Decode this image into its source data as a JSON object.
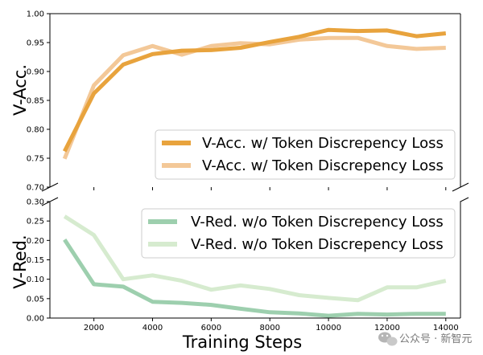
{
  "chart_data": [
    {
      "type": "line",
      "ylabel": "V-Acc.",
      "ylim": [
        0.7,
        1.0
      ],
      "yticks": [
        "0.70",
        "0.75",
        "0.80",
        "0.85",
        "0.90",
        "0.95",
        "1.00"
      ],
      "x": [
        1000,
        2000,
        3000,
        4000,
        5000,
        6000,
        7000,
        8000,
        9000,
        10000,
        11000,
        12000,
        13000,
        14000
      ],
      "legend_position": "lower-right",
      "series": [
        {
          "name": "V-Acc. w/ Token Discrepency Loss",
          "color": "#E8A33D",
          "values": [
            0.762,
            0.862,
            0.912,
            0.93,
            0.936,
            0.937,
            0.941,
            0.951,
            0.96,
            0.972,
            0.97,
            0.971,
            0.961,
            0.966
          ]
        },
        {
          "name": "V-Acc. w/ Token Discrepency Loss",
          "color": "#F3C898",
          "values": [
            0.749,
            0.876,
            0.928,
            0.944,
            0.929,
            0.944,
            0.949,
            0.947,
            0.955,
            0.958,
            0.958,
            0.944,
            0.939,
            0.941
          ]
        }
      ]
    },
    {
      "type": "line",
      "xlabel": "Training Steps",
      "ylabel": "V-Red.",
      "ylim": [
        0.0,
        0.3
      ],
      "yticks": [
        "0.00",
        "0.05",
        "0.10",
        "0.15",
        "0.20",
        "0.25",
        "0.30"
      ],
      "xticks": [
        "2000",
        "4000",
        "6000",
        "8000",
        "10000",
        "12000",
        "14000"
      ],
      "x": [
        1000,
        2000,
        3000,
        4000,
        5000,
        6000,
        7000,
        8000,
        9000,
        10000,
        11000,
        12000,
        13000,
        14000
      ],
      "legend_position": "upper-right",
      "series": [
        {
          "name": "V-Red. w/o Token Discrepency Loss",
          "color": "#9DCFAE",
          "values": [
            0.202,
            0.087,
            0.081,
            0.042,
            0.039,
            0.034,
            0.024,
            0.015,
            0.012,
            0.006,
            0.011,
            0.009,
            0.011,
            0.011
          ]
        },
        {
          "name": "V-Red. w/o Token Discrepency Loss",
          "color": "#D6EBCF",
          "values": [
            0.262,
            0.214,
            0.1,
            0.11,
            0.096,
            0.073,
            0.084,
            0.075,
            0.059,
            0.052,
            0.046,
            0.079,
            0.079,
            0.096
          ]
        }
      ]
    }
  ],
  "watermark": {
    "text": "公众号 · 新智元",
    "icon": "wechat-icon"
  }
}
